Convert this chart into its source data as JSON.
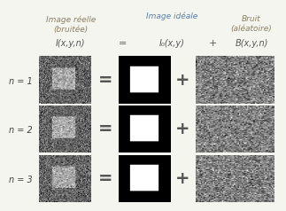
{
  "bg_color": "#f5f5f0",
  "title_col1": "Image réelle\n(bruitée)",
  "title_col2": "Image idéale",
  "title_col3": "Bruit\n(aléatoire)",
  "formula_left": "I(x,y,n)",
  "formula_eq": "=",
  "formula_mid": "I₀(x,y)",
  "formula_plus": "+",
  "formula_right": "B(x,y,n)",
  "row_labels": [
    "n = 1",
    "n = 2",
    "n = 3"
  ],
  "col1_color": "#8b7355",
  "col2_color": "#6a7fa8",
  "col3_color": "#8b7355",
  "header_color_col1": "#8b8060",
  "header_color_col2": "#5a7fa0",
  "header_color_col3": "#8b8060",
  "noise_mean": 128,
  "noise_std": 40,
  "ideal_bg": 0,
  "ideal_fg": 255,
  "noisy_bg_mean": 100,
  "noisy_bg_std": 35,
  "noisy_fg_mean": 170,
  "noisy_fg_std": 35
}
